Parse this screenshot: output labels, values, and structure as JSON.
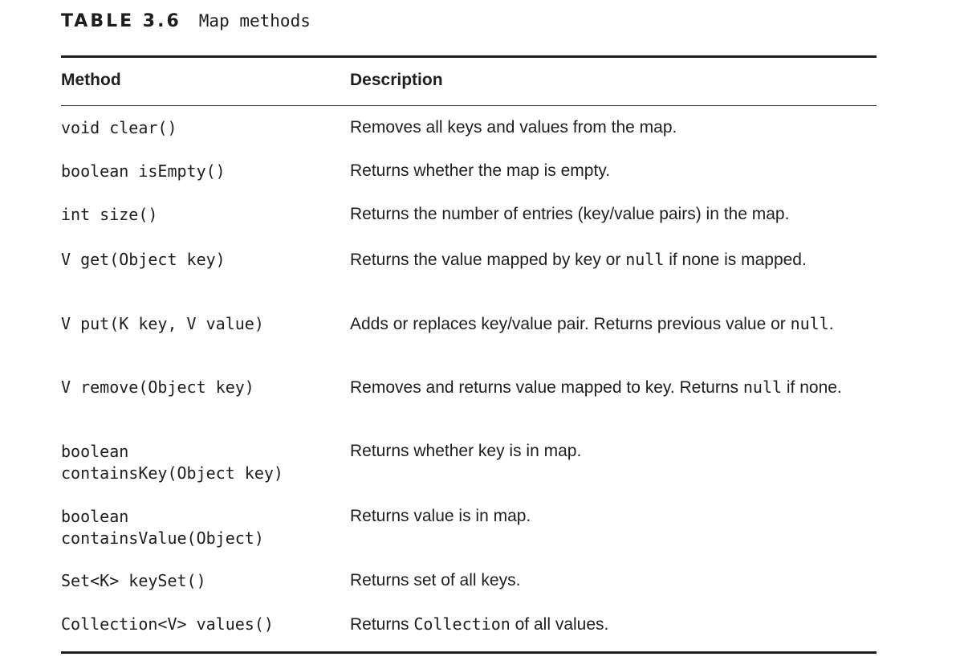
{
  "table": {
    "label": "TABLE 3.6",
    "title": "Map methods",
    "headers": {
      "method": "Method",
      "description": "Description"
    },
    "rows": [
      {
        "method": [
          "void clear()"
        ],
        "desc_parts": [
          "Removes all keys and values from the map."
        ]
      },
      {
        "method": [
          "boolean isEmpty()"
        ],
        "desc_parts": [
          "Returns whether the map is empty."
        ]
      },
      {
        "method": [
          "int size()"
        ],
        "desc_parts": [
          "Returns the number of entries (key/value pairs) in the map."
        ]
      },
      {
        "method": [
          "V get(Object key)"
        ],
        "desc_parts": [
          "Returns the value mapped by key or ",
          "null",
          " if none is mapped."
        ]
      },
      {
        "method": [
          "V put(K key, V value)"
        ],
        "desc_parts": [
          "Adds or replaces key/value pair. Returns previous value or ",
          "null",
          "."
        ]
      },
      {
        "method": [
          "V remove(Object key)"
        ],
        "desc_parts": [
          "Removes and returns value mapped to key. Returns ",
          "null",
          " if none."
        ]
      },
      {
        "method": [
          "boolean",
          "containsKey(Object key)"
        ],
        "desc_parts": [
          "Returns whether key is in map."
        ]
      },
      {
        "method": [
          "boolean",
          "containsValue(Object)"
        ],
        "desc_parts": [
          "Returns value is in map."
        ]
      },
      {
        "method": [
          "Set<K> keySet()"
        ],
        "desc_parts": [
          "Returns set of all keys."
        ]
      },
      {
        "method": [
          "Collection<V> values()"
        ],
        "desc_parts": [
          "Returns ",
          "Collection",
          " of all values."
        ]
      }
    ]
  }
}
